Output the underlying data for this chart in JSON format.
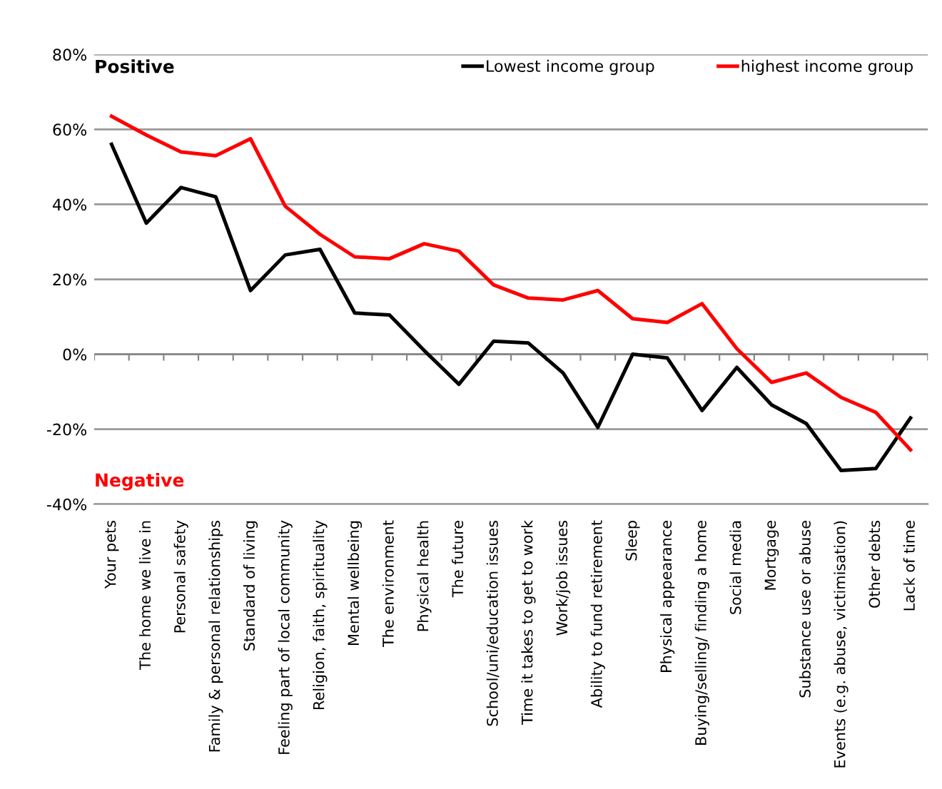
{
  "chart_data": {
    "type": "line",
    "categories": [
      "Your pets",
      "The home we live in",
      "Personal safety",
      "Family & personal relationships",
      "Standard of living",
      "Feeling part of local community",
      "Religion, faith, spirituality",
      "Mental wellbeing",
      "The environment",
      "Physical health",
      "The future",
      "School/uni/education issues",
      "Time it takes to get to work",
      "Work/job issues",
      "Ability to fund retirement",
      "Sleep",
      "Physical appearance",
      "Buying/selling/ finding a home",
      "Social media",
      "Mortgage",
      "Substance use or abuse",
      "Events (e.g. abuse, victimisation)",
      "Other debts",
      "Lack of time"
    ],
    "series": [
      {
        "name": "Lowest income group",
        "color": "#000000",
        "values": [
          56,
          35,
          44.5,
          42,
          17,
          26.5,
          28,
          11,
          10.5,
          1,
          -8,
          3.5,
          3,
          -5,
          -19.5,
          0,
          -1,
          -15,
          -3.5,
          -13.5,
          -18.5,
          -31,
          -30.5,
          -17
        ]
      },
      {
        "name": "highest income group",
        "color": "#ff0000",
        "values": [
          63.5,
          58.5,
          54,
          53,
          57.5,
          39.5,
          32,
          26,
          25.5,
          29.5,
          27.5,
          18.5,
          15,
          14.5,
          17,
          9.5,
          8.5,
          13.5,
          1.5,
          -7.5,
          -5,
          -11.5,
          -15.5,
          -25.5
        ]
      }
    ],
    "ylim": [
      -40,
      80
    ],
    "yticks": [
      {
        "value": -40,
        "label": "-40%"
      },
      {
        "value": -20,
        "label": "-20%"
      },
      {
        "value": 0,
        "label": "0%"
      },
      {
        "value": 20,
        "label": "20%"
      },
      {
        "value": 40,
        "label": "40%"
      },
      {
        "value": 60,
        "label": "60%"
      },
      {
        "value": 80,
        "label": "80%"
      }
    ],
    "grid": "y",
    "legend": "top right",
    "marker": "none",
    "line_style": "solid",
    "annotations": [
      "Positive",
      "Negative"
    ]
  }
}
